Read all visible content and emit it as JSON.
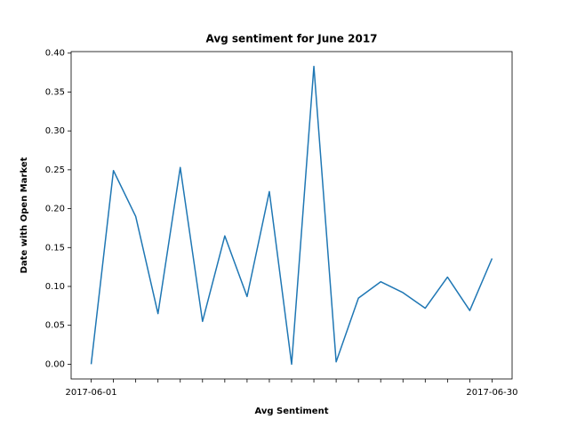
{
  "chart_data": {
    "type": "line",
    "title": "Avg sentiment for June 2017",
    "x_label": "Avg Sentiment",
    "y_label": "Date with Open Market",
    "categories": [
      "2017-06-01",
      null,
      null,
      null,
      null,
      null,
      null,
      null,
      null,
      null,
      null,
      null,
      null,
      null,
      null,
      null,
      null,
      null,
      "2017-06-30"
    ],
    "series": [
      {
        "color": "#1f77b4",
        "values": [
          0.0,
          0.249,
          0.19,
          0.065,
          0.253,
          0.055,
          0.165,
          0.087,
          0.222,
          0.0,
          0.383,
          0.003,
          0.085,
          0.106,
          0.092,
          0.072,
          0.112,
          0.069,
          0.136
        ]
      }
    ],
    "ylim": [
      -0.019,
      0.402
    ],
    "yticks": [
      {
        "value": 0,
        "label": "0.00"
      },
      {
        "value": 0.05,
        "label": "0.05"
      },
      {
        "value": 0.1,
        "label": "0.10"
      },
      {
        "value": 0.15,
        "label": "0.15"
      },
      {
        "value": 0.2,
        "label": "0.20"
      },
      {
        "value": 0.25,
        "label": "0.25"
      },
      {
        "value": 0.3,
        "label": "0.30"
      },
      {
        "value": 0.35,
        "label": "0.35"
      },
      {
        "value": 0.4,
        "label": "0.40"
      }
    ],
    "grid": false
  }
}
